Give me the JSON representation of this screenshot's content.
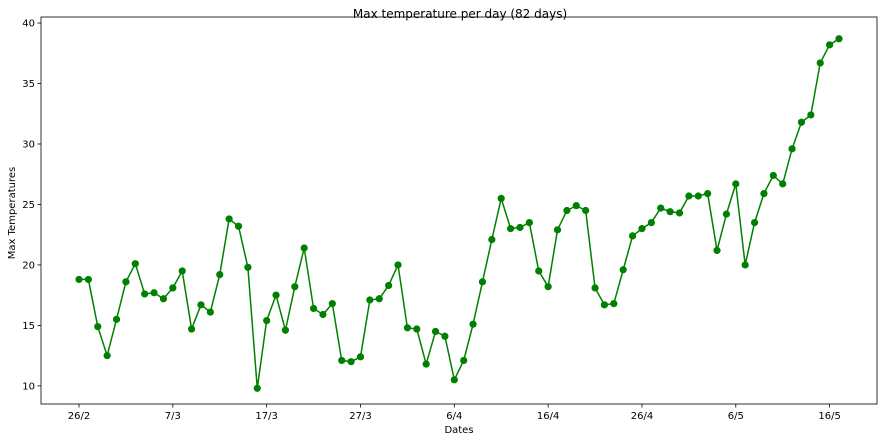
{
  "chart_data": {
    "type": "line",
    "title": "Max temperature per day (82 days)",
    "xlabel": "Dates",
    "ylabel": "Max Temperatures",
    "x_ticks": [
      "26/2",
      "7/3",
      "17/3",
      "27/3",
      "6/4",
      "16/4",
      "26/4",
      "6/5",
      "16/5"
    ],
    "x_tick_indices": [
      0,
      10,
      20,
      30,
      40,
      50,
      60,
      70,
      80
    ],
    "yticks": [
      10,
      15,
      20,
      25,
      30,
      35,
      40
    ],
    "ylim": [
      8.5,
      40.5
    ],
    "grid": false,
    "series": [
      {
        "color": "#008000",
        "marker": "circle",
        "values": [
          18.8,
          18.8,
          14.9,
          12.5,
          15.5,
          18.6,
          20.1,
          17.6,
          17.7,
          17.2,
          18.1,
          19.5,
          14.7,
          16.7,
          16.1,
          19.2,
          23.8,
          23.2,
          19.8,
          9.8,
          15.4,
          17.5,
          14.6,
          18.2,
          21.4,
          16.4,
          15.9,
          16.8,
          12.1,
          12.0,
          12.4,
          17.1,
          17.2,
          18.3,
          20.0,
          14.8,
          14.7,
          11.8,
          14.5,
          14.1,
          10.5,
          12.1,
          15.1,
          18.6,
          22.1,
          25.5,
          23.0,
          23.1,
          23.5,
          19.5,
          18.2,
          22.9,
          24.5,
          24.9,
          24.5,
          18.1,
          16.7,
          16.8,
          19.6,
          22.4,
          23.0,
          23.5,
          24.7,
          24.4,
          24.3,
          25.7,
          25.7,
          25.9,
          21.2,
          24.2,
          26.7,
          20.0,
          23.5,
          25.9,
          27.4,
          26.7,
          29.6,
          31.8,
          32.4,
          36.7,
          38.2,
          38.7
        ]
      }
    ]
  }
}
